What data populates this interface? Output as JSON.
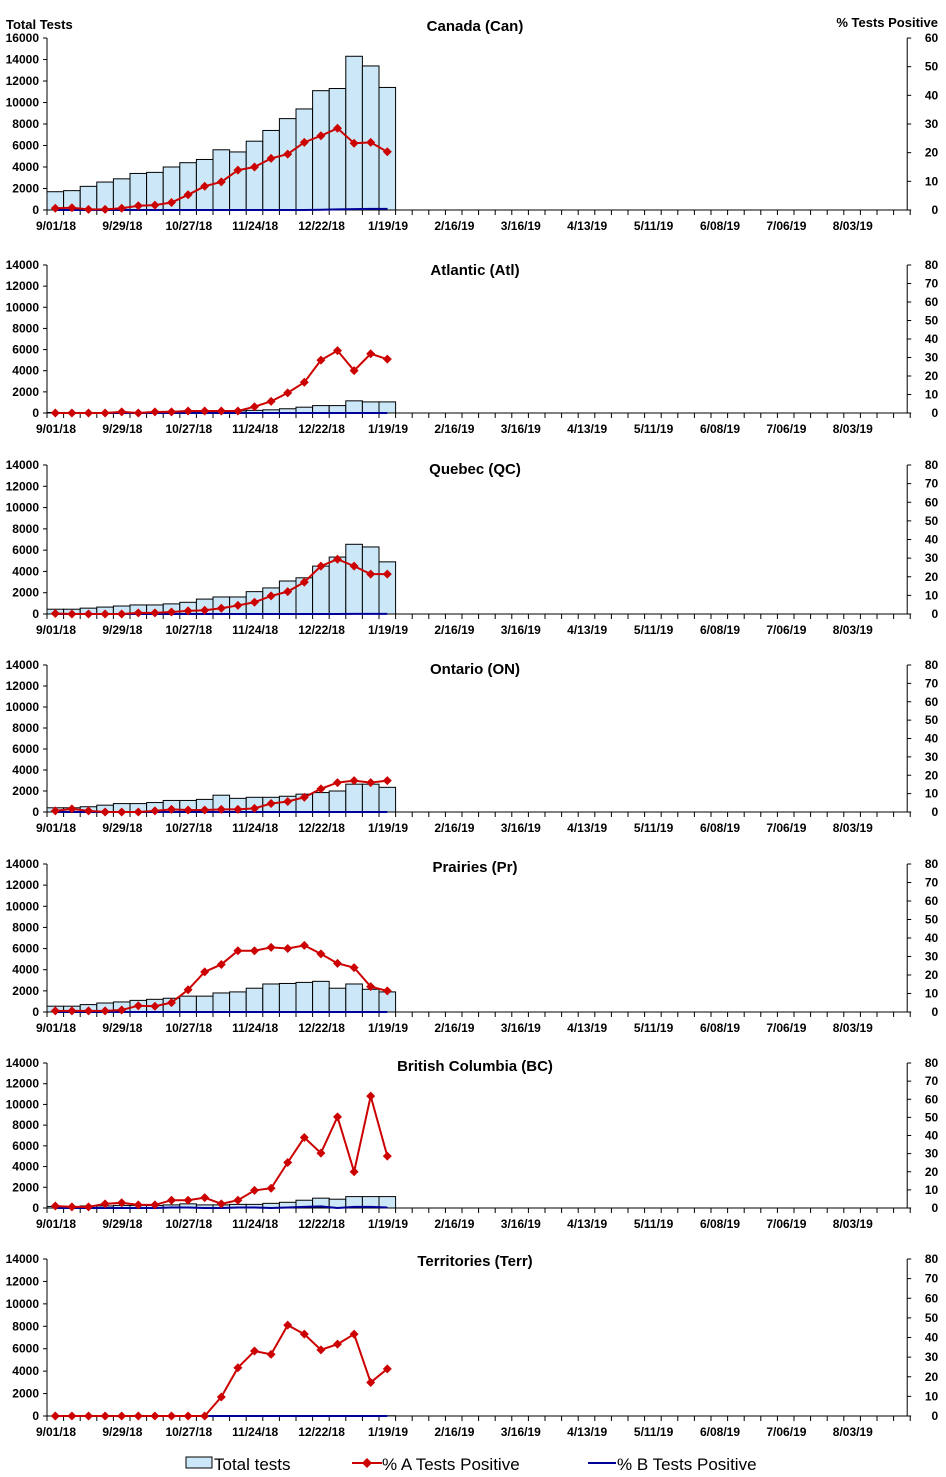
{
  "legend": {
    "bars": "Total tests",
    "series_a": "% A Tests Positive",
    "series_b": "% B Tests Positive"
  },
  "colors": {
    "bars": "#cce8f8",
    "series_a": "#cc0000",
    "series_b": "#000099"
  },
  "axis_titles": {
    "left": "Total Tests",
    "right": "% Tests Positive"
  },
  "weeks": [
    "9/01/18",
    "9/08/18",
    "9/15/18",
    "9/22/18",
    "9/29/18",
    "10/06/18",
    "10/13/18",
    "10/20/18",
    "10/27/18",
    "11/03/18",
    "11/10/18",
    "11/17/18",
    "11/24/18",
    "12/01/18",
    "12/08/18",
    "12/15/18",
    "12/22/18",
    "12/29/18",
    "1/05/19",
    "1/12/19",
    "1/19/19"
  ],
  "x_tick_labels": [
    "9/01/18",
    "9/29/18",
    "10/27/18",
    "11/24/18",
    "12/22/18",
    "1/19/19",
    "2/16/19",
    "3/16/19",
    "4/13/19",
    "5/11/19",
    "6/08/19",
    "7/06/19",
    "8/03/19"
  ],
  "chart_data": [
    {
      "type": "bar+line",
      "title": "Canada (Can)",
      "ylim_left": [
        0,
        16000
      ],
      "ylim_right": [
        0,
        60
      ],
      "grid": false,
      "total_tests": [
        1700,
        1800,
        2200,
        2600,
        2900,
        3400,
        3500,
        4000,
        4400,
        4700,
        5600,
        5400,
        6400,
        7400,
        8500,
        9400,
        11100,
        11300,
        14300,
        13400,
        11400
      ],
      "pct_a": [
        0.6,
        0.8,
        0.2,
        0.2,
        0.6,
        1.5,
        1.7,
        2.6,
        5.3,
        8.3,
        9.8,
        13.9,
        15,
        18,
        19.5,
        23.6,
        25.9,
        28.5,
        23.3,
        23.6,
        20.3
      ],
      "pct_b": [
        0,
        0,
        0,
        0,
        0,
        0,
        0,
        0,
        0,
        0,
        0,
        0,
        0,
        0,
        0,
        0,
        0.1,
        0.2,
        0.3,
        0.4,
        0.4
      ]
    },
    {
      "type": "bar+line",
      "title": "Atlantic (Atl)",
      "ylim_left": [
        0,
        14000
      ],
      "ylim_right": [
        0,
        80
      ],
      "grid": false,
      "total_tests": [
        50,
        50,
        50,
        50,
        50,
        50,
        100,
        150,
        200,
        200,
        200,
        200,
        250,
        300,
        400,
        550,
        700,
        700,
        1150,
        1050,
        1050
      ],
      "pct_a": [
        0,
        0,
        0,
        0,
        0.6,
        0,
        0.6,
        0.6,
        1.1,
        1.1,
        1.1,
        1.1,
        3.4,
        6.3,
        10.9,
        16.6,
        28.6,
        33.7,
        22.9,
        32,
        29.1
      ],
      "pct_b": [
        0,
        0,
        0,
        0,
        0,
        0,
        0,
        0,
        0,
        0,
        0,
        0,
        0,
        0,
        0,
        0,
        0,
        0,
        0,
        0,
        0
      ]
    },
    {
      "type": "bar+line",
      "title": "Quebec (QC)",
      "ylim_left": [
        0,
        14000
      ],
      "ylim_right": [
        0,
        80
      ],
      "grid": false,
      "total_tests": [
        450,
        450,
        550,
        650,
        750,
        850,
        850,
        950,
        1100,
        1400,
        1600,
        1600,
        2100,
        2450,
        3100,
        3400,
        4500,
        5350,
        6550,
        6300,
        4900
      ],
      "pct_a": [
        0.3,
        0,
        0,
        0,
        0,
        0.6,
        0.6,
        1.1,
        1.7,
        2,
        3.1,
        4.6,
        6.3,
        9.7,
        12,
        17.1,
        25.7,
        29.4,
        25.7,
        21.4,
        21.4
      ],
      "pct_b": [
        0,
        0,
        0,
        0,
        0,
        0,
        0,
        0,
        0,
        0,
        0,
        0,
        0,
        0,
        0,
        0,
        0,
        0,
        0.1,
        0.1,
        0.1
      ]
    },
    {
      "type": "bar+line",
      "title": "Ontario (ON)",
      "ylim_left": [
        0,
        14000
      ],
      "ylim_right": [
        0,
        80
      ],
      "grid": false,
      "total_tests": [
        400,
        400,
        500,
        650,
        800,
        800,
        900,
        1100,
        1100,
        1200,
        1600,
        1300,
        1400,
        1400,
        1500,
        1700,
        1850,
        2000,
        2650,
        2650,
        2350
      ],
      "pct_a": [
        0.6,
        1.7,
        0.6,
        0,
        0,
        0,
        0.6,
        1.4,
        1.1,
        1.1,
        1.4,
        1.4,
        2,
        4.6,
        5.7,
        8,
        12.6,
        16,
        17.1,
        16,
        17.1
      ],
      "pct_b": [
        0,
        0,
        0,
        0,
        0,
        0,
        0,
        0,
        0,
        0,
        0,
        0,
        0,
        0,
        0,
        0,
        0,
        0,
        0,
        0,
        0
      ]
    },
    {
      "type": "bar+line",
      "title": "Prairies (Pr)",
      "ylim_left": [
        0,
        14000
      ],
      "ylim_right": [
        0,
        80
      ],
      "grid": false,
      "total_tests": [
        550,
        550,
        700,
        850,
        950,
        1100,
        1200,
        1300,
        1500,
        1500,
        1800,
        1900,
        2250,
        2650,
        2700,
        2800,
        2900,
        2250,
        2650,
        2150,
        1900
      ],
      "pct_a": [
        0.6,
        0.6,
        0.6,
        0.6,
        1.1,
        3.4,
        3.1,
        5.1,
        12,
        21.7,
        25.7,
        33.1,
        33.1,
        34.9,
        34.3,
        36,
        31.4,
        26.3,
        24,
        13.7,
        11.4
      ],
      "pct_b": [
        0,
        0,
        0,
        0,
        0,
        0,
        0,
        0,
        0,
        0,
        0,
        0,
        0,
        0,
        0,
        0,
        0,
        0,
        0,
        0,
        0
      ]
    },
    {
      "type": "bar+line",
      "title": "British Columbia (BC)",
      "ylim_left": [
        0,
        14000
      ],
      "ylim_right": [
        0,
        80
      ],
      "grid": false,
      "total_tests": [
        150,
        150,
        200,
        200,
        250,
        250,
        250,
        300,
        400,
        300,
        300,
        350,
        350,
        450,
        550,
        750,
        950,
        850,
        1100,
        1100,
        1100
      ],
      "pct_a": [
        1.1,
        0.6,
        0.6,
        2.3,
        2.9,
        1.7,
        1.7,
        4.3,
        4.3,
        5.7,
        2.3,
        4.3,
        9.7,
        10.9,
        25.1,
        38.9,
        30.3,
        50.3,
        20,
        61.7,
        28.6
      ],
      "pct_b": [
        0,
        0,
        0,
        0,
        0,
        0,
        0,
        0.3,
        0.3,
        0,
        0,
        0.3,
        0.3,
        0,
        0.3,
        0.6,
        0.9,
        0,
        0.6,
        0.6,
        0.3
      ]
    },
    {
      "type": "bar+line",
      "title": "Territories (Terr)",
      "ylim_left": [
        0,
        14000
      ],
      "ylim_right": [
        0,
        80
      ],
      "grid": false,
      "total_tests": [
        0,
        0,
        0,
        0,
        0,
        0,
        0,
        0,
        0,
        0,
        10,
        20,
        20,
        20,
        20,
        20,
        20,
        20,
        20,
        20,
        20
      ],
      "pct_a": [
        0,
        0,
        0,
        0,
        0,
        0,
        0,
        0,
        0,
        0,
        9.7,
        24.6,
        33.1,
        31.4,
        46.3,
        41.7,
        33.7,
        36.6,
        41.7,
        17.1,
        24
      ],
      "pct_b": [
        0,
        0,
        0,
        0,
        0,
        0,
        0,
        0,
        0,
        0,
        0,
        0,
        0,
        0,
        0,
        0,
        0,
        0,
        0,
        0,
        0
      ]
    }
  ]
}
